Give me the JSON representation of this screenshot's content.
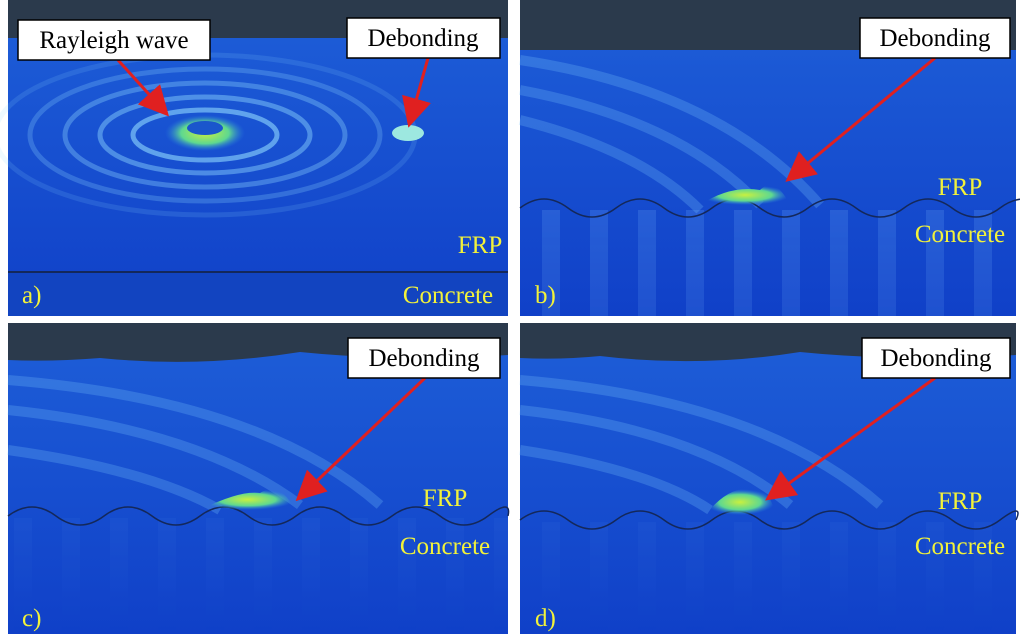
{
  "panels": [
    {
      "label": "a)",
      "callouts": [
        "Rayleigh wave",
        "Debonding"
      ],
      "layers": [
        "FRP",
        "Concrete"
      ]
    },
    {
      "label": "b)",
      "callouts": [
        "Debonding"
      ],
      "layers": [
        "FRP",
        "Concrete"
      ]
    },
    {
      "label": "c)",
      "callouts": [
        "Debonding"
      ],
      "layers": [
        "FRP",
        "Concrete"
      ]
    },
    {
      "label": "d)",
      "callouts": [
        "Debonding"
      ],
      "layers": [
        "FRP",
        "Concrete"
      ]
    }
  ]
}
